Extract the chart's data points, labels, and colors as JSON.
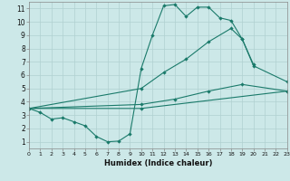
{
  "xlabel": "Humidex (Indice chaleur)",
  "color": "#1a7a6a",
  "bg_color": "#cce8e8",
  "grid_color": "#b0d0d0",
  "line1_x": [
    0,
    1,
    2,
    3,
    4,
    5,
    6,
    7,
    8,
    9,
    10,
    11,
    12,
    13,
    14,
    15,
    16,
    17,
    18,
    19,
    20
  ],
  "line1_y": [
    3.5,
    3.2,
    2.7,
    2.8,
    2.5,
    2.2,
    1.4,
    1.0,
    1.05,
    1.6,
    6.5,
    9.0,
    11.2,
    11.3,
    10.4,
    11.1,
    11.1,
    10.3,
    10.1,
    8.7,
    6.8
  ],
  "line2_x": [
    0,
    10,
    12,
    14,
    16,
    18,
    19,
    20,
    23
  ],
  "line2_y": [
    3.5,
    5.0,
    6.2,
    7.2,
    8.5,
    9.5,
    8.7,
    6.7,
    5.5
  ],
  "line3_x": [
    0,
    10,
    13,
    16,
    19,
    23
  ],
  "line3_y": [
    3.5,
    3.8,
    4.2,
    4.8,
    5.3,
    4.8
  ],
  "line4_x": [
    0,
    10,
    23
  ],
  "line4_y": [
    3.5,
    3.5,
    4.8
  ],
  "xlim": [
    0,
    23
  ],
  "ylim": [
    0.5,
    11.5
  ],
  "xticks": [
    0,
    1,
    2,
    3,
    4,
    5,
    6,
    7,
    8,
    9,
    10,
    11,
    12,
    13,
    14,
    15,
    16,
    17,
    18,
    19,
    20,
    21,
    22,
    23
  ],
  "yticks": [
    1,
    2,
    3,
    4,
    5,
    6,
    7,
    8,
    9,
    10,
    11
  ]
}
